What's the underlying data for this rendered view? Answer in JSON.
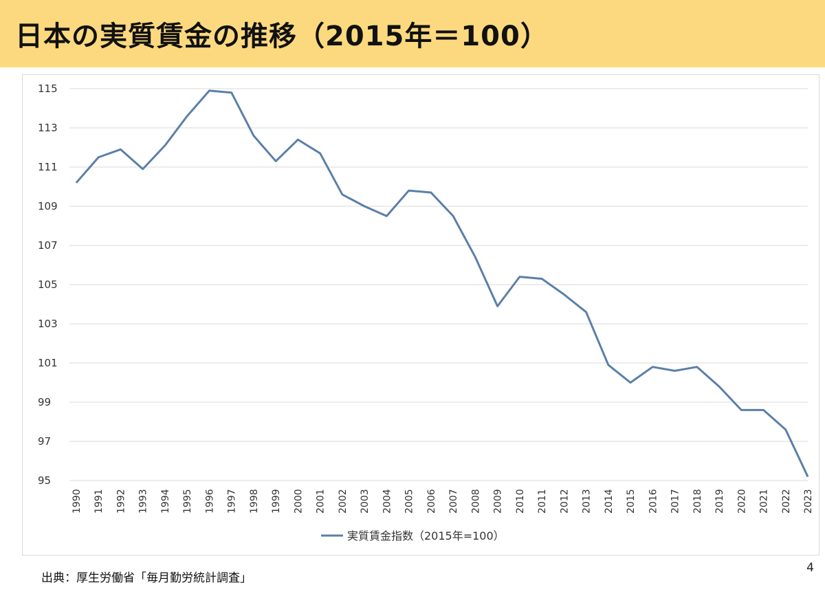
{
  "slide": {
    "title": "日本の実質賃金の推移（2015年＝100）",
    "source": "出典：厚生労働省「毎月勤労統計調査」",
    "page_number": "4",
    "header_color": "#fcd97f"
  },
  "chart_data": {
    "type": "line",
    "title": "",
    "xlabel": "",
    "ylabel": "",
    "x": [
      "1990",
      "1991",
      "1992",
      "1993",
      "1994",
      "1995",
      "1996",
      "1997",
      "1998",
      "1999",
      "2000",
      "2001",
      "2002",
      "2003",
      "2004",
      "2005",
      "2006",
      "2007",
      "2008",
      "2009",
      "2010",
      "2011",
      "2012",
      "2013",
      "2014",
      "2015",
      "2016",
      "2017",
      "2018",
      "2019",
      "2020",
      "2021",
      "2022",
      "2023"
    ],
    "series": [
      {
        "name": "実質賃金指数（2015年=100）",
        "color": "#5b7fa8",
        "values": [
          110.2,
          111.5,
          111.9,
          110.9,
          112.1,
          113.6,
          114.9,
          114.8,
          112.6,
          111.3,
          112.4,
          111.7,
          109.6,
          109.0,
          108.5,
          109.8,
          109.7,
          108.5,
          106.4,
          103.9,
          105.4,
          105.3,
          104.5,
          103.6,
          100.9,
          100.0,
          100.8,
          100.6,
          100.8,
          99.8,
          98.6,
          98.6,
          97.6,
          95.2
        ]
      }
    ],
    "ylim": [
      95,
      115
    ],
    "yticks": [
      95,
      97,
      99,
      101,
      103,
      105,
      107,
      109,
      111,
      113,
      115
    ],
    "grid": true,
    "legend_position": "bottom"
  }
}
